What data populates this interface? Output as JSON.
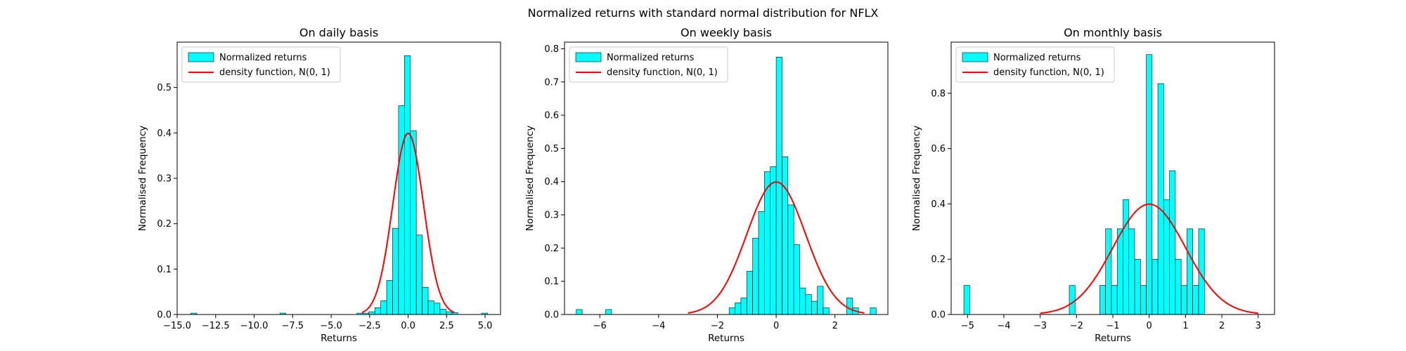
{
  "figure": {
    "suptitle": "Normalized returns with standard normal distribution for NFLX"
  },
  "colors": {
    "bar_fill": "#00ffff",
    "bar_edge": "#000000",
    "curve": "#ff0000",
    "axis": "#000000"
  },
  "chart_data": [
    {
      "type": "bar",
      "title": "On daily basis",
      "xlabel": "Returns",
      "ylabel": "Normalised Frequency",
      "xlim": [
        -15.0,
        6.0
      ],
      "ylim": [
        0.0,
        0.6
      ],
      "xticks": [
        -15.0,
        -12.5,
        -10.0,
        -7.5,
        -5.0,
        -2.5,
        0.0,
        2.5,
        5.0
      ],
      "xtick_labels": [
        "−15.0",
        "−12.5",
        "−10.0",
        "−7.5",
        "−5.0",
        "−2.5",
        "0.0",
        "2.5",
        "5.0"
      ],
      "yticks": [
        0.0,
        0.1,
        0.2,
        0.3,
        0.4,
        0.5
      ],
      "ytick_labels": [
        "0.0",
        "0.1",
        "0.2",
        "0.3",
        "0.4",
        "0.5"
      ],
      "legend": {
        "position": "upper-left",
        "entries": [
          "Normalized returns",
          "density function, N(0, 1)"
        ]
      },
      "histogram": {
        "bin_width": 0.385,
        "bin_starts": [
          -14.11,
          -8.33,
          -3.32,
          -2.935,
          -2.55,
          -2.165,
          -1.78,
          -1.395,
          -1.01,
          -0.625,
          -0.24,
          0.145,
          0.53,
          0.915,
          1.3,
          1.685,
          2.07,
          2.455,
          2.84,
          4.77
        ],
        "values": [
          0.003,
          0.003,
          0.003,
          0.003,
          0.006,
          0.015,
          0.03,
          0.075,
          0.19,
          0.46,
          0.57,
          0.405,
          0.175,
          0.06,
          0.03,
          0.025,
          0.012,
          0.006,
          0.004,
          0.003
        ]
      },
      "curve": {
        "name": "density function, N(0, 1)",
        "distribution": "normal",
        "mean": 0,
        "std": 1,
        "x_range": [
          -3.0,
          3.0
        ]
      }
    },
    {
      "type": "bar",
      "title": "On weekly basis",
      "xlabel": "Returns",
      "ylabel": "Normalised Frequency",
      "xlim": [
        -7.2,
        3.8
      ],
      "ylim": [
        0.0,
        0.82
      ],
      "xticks": [
        -6,
        -4,
        -2,
        0,
        2
      ],
      "xtick_labels": [
        "−6",
        "−4",
        "−2",
        "0",
        "2"
      ],
      "yticks": [
        0.0,
        0.1,
        0.2,
        0.3,
        0.4,
        0.5,
        0.6,
        0.7,
        0.8
      ],
      "ytick_labels": [
        "0.0",
        "0.1",
        "0.2",
        "0.3",
        "0.4",
        "0.5",
        "0.6",
        "0.7",
        "0.8"
      ],
      "legend": {
        "position": "upper-left",
        "entries": [
          "Normalized returns",
          "density function, N(0, 1)"
        ]
      },
      "histogram": {
        "bin_width": 0.2,
        "bin_starts": [
          -6.8,
          -5.8,
          -1.6,
          -1.4,
          -1.2,
          -1.0,
          -0.8,
          -0.6,
          -0.4,
          -0.2,
          0.0,
          0.2,
          0.4,
          0.6,
          0.8,
          1.0,
          1.2,
          1.4,
          1.6,
          2.4,
          2.6,
          3.2
        ],
        "values": [
          0.015,
          0.015,
          0.02,
          0.035,
          0.05,
          0.13,
          0.23,
          0.31,
          0.43,
          0.445,
          0.775,
          0.475,
          0.33,
          0.21,
          0.08,
          0.06,
          0.04,
          0.085,
          0.02,
          0.05,
          0.02,
          0.02
        ]
      },
      "curve": {
        "name": "density function, N(0, 1)",
        "distribution": "normal",
        "mean": 0,
        "std": 1,
        "x_range": [
          -3.0,
          3.0
        ]
      }
    },
    {
      "type": "bar",
      "title": "On monthly basis",
      "xlabel": "Returns",
      "ylabel": "Normalised Frequency",
      "xlim": [
        -5.45,
        3.45
      ],
      "ylim": [
        0.0,
        0.985
      ],
      "xticks": [
        -5,
        -4,
        -3,
        -2,
        -1,
        0,
        1,
        2,
        3
      ],
      "xtick_labels": [
        "−5",
        "−4",
        "−3",
        "−2",
        "−1",
        "0",
        "1",
        "2",
        "3"
      ],
      "yticks": [
        0.0,
        0.2,
        0.4,
        0.6,
        0.8
      ],
      "ytick_labels": [
        "0.0",
        "0.2",
        "0.4",
        "0.6",
        "0.8"
      ],
      "legend": {
        "position": "upper-left",
        "entries": [
          "Normalized returns",
          "density function, N(0, 1)"
        ]
      },
      "histogram": {
        "bin_width": 0.16,
        "bin_starts": [
          -5.1,
          -2.2,
          -1.36,
          -1.2,
          -1.04,
          -0.88,
          -0.72,
          -0.56,
          -0.4,
          -0.24,
          -0.08,
          0.08,
          0.24,
          0.4,
          0.56,
          0.72,
          0.88,
          1.04,
          1.2,
          1.36
        ],
        "values": [
          0.105,
          0.105,
          0.105,
          0.31,
          0.105,
          0.31,
          0.415,
          0.31,
          0.2,
          0.105,
          0.94,
          0.2,
          0.835,
          0.415,
          0.52,
          0.2,
          0.105,
          0.31,
          0.105,
          0.31
        ]
      },
      "curve": {
        "name": "density function, N(0, 1)",
        "distribution": "normal",
        "mean": 0,
        "std": 1,
        "x_range": [
          -3.0,
          3.0
        ]
      }
    }
  ]
}
